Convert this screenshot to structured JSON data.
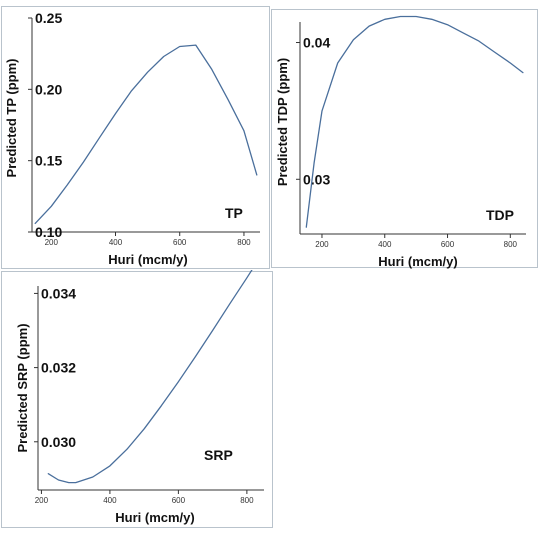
{
  "chart_data": [
    {
      "type": "line",
      "tag": "TP",
      "xlabel": "Huri (mcm/y)",
      "ylabel": "Predicted TP (ppm)",
      "xlim": [
        140,
        850
      ],
      "ylim": [
        0.1,
        0.25
      ],
      "xticks": [
        200,
        400,
        600,
        800
      ],
      "yticks": [
        0.1,
        0.15,
        0.2,
        0.25
      ],
      "ytick_labels": [
        "0.10",
        "0.15",
        "0.20",
        "0.25"
      ],
      "x": [
        150,
        200,
        250,
        300,
        350,
        400,
        450,
        500,
        550,
        600,
        650,
        700,
        750,
        800,
        840
      ],
      "y": [
        0.106,
        0.118,
        0.133,
        0.149,
        0.166,
        0.183,
        0.199,
        0.212,
        0.223,
        0.23,
        0.231,
        0.214,
        0.193,
        0.171,
        0.14
      ]
    },
    {
      "type": "line",
      "tag": "TDP",
      "xlabel": "Huri (mcm/y)",
      "ylabel": "Predicted TDP (ppm)",
      "xlim": [
        130,
        850
      ],
      "ylim": [
        0.026,
        0.0415
      ],
      "xticks": [
        200,
        400,
        600,
        800
      ],
      "yticks": [
        0.03,
        0.04
      ],
      "ytick_labels": [
        "0.03",
        "0.04"
      ],
      "x": [
        150,
        175,
        200,
        250,
        300,
        350,
        400,
        450,
        500,
        550,
        600,
        650,
        700,
        750,
        800,
        840
      ],
      "y": [
        0.0265,
        0.0312,
        0.035,
        0.0385,
        0.0402,
        0.0412,
        0.0417,
        0.0419,
        0.0419,
        0.0417,
        0.0413,
        0.0407,
        0.0401,
        0.0393,
        0.0385,
        0.0378
      ]
    },
    {
      "type": "line",
      "tag": "SRP",
      "xlabel": "Huri (mcm/y)",
      "ylabel": "Predicted SRP (ppm)",
      "xlim": [
        190,
        850
      ],
      "ylim": [
        0.0287,
        0.0342
      ],
      "xticks": [
        200,
        400,
        600,
        800
      ],
      "yticks": [
        0.03,
        0.032,
        0.034
      ],
      "ytick_labels": [
        "0.030",
        "0.032",
        "0.034"
      ],
      "x": [
        220,
        250,
        280,
        300,
        350,
        400,
        450,
        500,
        550,
        600,
        650,
        700,
        750,
        800,
        840
      ],
      "y": [
        0.02914,
        0.02897,
        0.0289,
        0.0289,
        0.02905,
        0.02935,
        0.0298,
        0.03035,
        0.03097,
        0.03162,
        0.0323,
        0.033,
        0.03372,
        0.03442,
        0.035
      ]
    }
  ],
  "colors": {
    "line": "#4a6f9c",
    "axis": "#333333",
    "frame": "#b9c3cc"
  }
}
